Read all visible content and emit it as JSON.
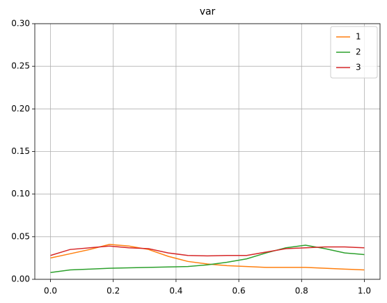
{
  "chart_data": {
    "type": "line",
    "title": "var",
    "x": [
      0,
      0.0625,
      0.125,
      0.1875,
      0.25,
      0.3125,
      0.375,
      0.4375,
      0.5,
      0.5625,
      0.625,
      0.6875,
      0.75,
      0.8125,
      0.875,
      0.9375,
      1.0
    ],
    "series": [
      {
        "name": "1",
        "color": "#ff7f0e",
        "values": [
          0.025,
          0.03,
          0.035,
          0.041,
          0.039,
          0.035,
          0.027,
          0.021,
          0.018,
          0.016,
          0.015,
          0.014,
          0.014,
          0.014,
          0.013,
          0.012,
          0.011
        ]
      },
      {
        "name": "2",
        "color": "#2ca02c",
        "values": [
          0.008,
          0.011,
          0.012,
          0.013,
          0.0135,
          0.014,
          0.0145,
          0.015,
          0.017,
          0.02,
          0.024,
          0.031,
          0.037,
          0.04,
          0.036,
          0.031,
          0.029
        ]
      },
      {
        "name": "3",
        "color": "#d62728",
        "values": [
          0.028,
          0.035,
          0.037,
          0.039,
          0.037,
          0.036,
          0.031,
          0.028,
          0.0275,
          0.028,
          0.028,
          0.032,
          0.036,
          0.037,
          0.038,
          0.038,
          0.037
        ]
      }
    ],
    "xlim": [
      -0.05,
      1.05
    ],
    "xticks": [
      {
        "value": 0,
        "label": "0.0"
      },
      0.2,
      0.4,
      0.6,
      0.8,
      {
        "value": 1,
        "label": "1.0"
      }
    ],
    "ylim": [
      0,
      0.3
    ],
    "yticks": [
      {
        "value": 0,
        "label": "0.00"
      },
      {
        "value": 0.05,
        "label": "0.05"
      },
      {
        "value": 0.1,
        "label": "0.10"
      },
      {
        "value": 0.15,
        "label": "0.15"
      },
      {
        "value": 0.2,
        "label": "0.20"
      },
      {
        "value": 0.25,
        "label": "0.25"
      },
      {
        "value": 0.3,
        "label": "0.30"
      }
    ],
    "grid": true,
    "legend": "upper right"
  }
}
